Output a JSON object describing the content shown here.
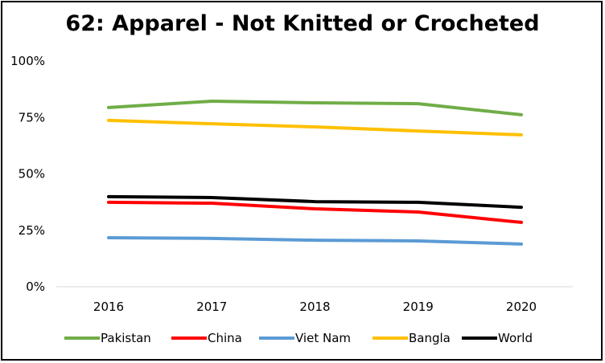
{
  "chart_data": {
    "type": "line",
    "title": "62: Apparel - Not Knitted or Crocheted",
    "xlabel": "",
    "ylabel": "",
    "x": [
      "2016",
      "2017",
      "2018",
      "2019",
      "2020"
    ],
    "ylim": [
      0,
      100
    ],
    "yticks": [
      "0%",
      "25%",
      "50%",
      "75%",
      "100%"
    ],
    "grid": false,
    "legend_position": "bottom",
    "series": [
      {
        "name": "Pakistan",
        "color": "#70AD47",
        "values": [
          79.4,
          82.2,
          81.5,
          81.1,
          76.2
        ]
      },
      {
        "name": "China",
        "color": "#FF0000",
        "values": [
          37.4,
          37.0,
          34.5,
          33.1,
          28.5
        ]
      },
      {
        "name": "Viet Nam",
        "color": "#5B9BD5",
        "values": [
          21.7,
          21.4,
          20.6,
          20.3,
          18.9
        ]
      },
      {
        "name": "Bangla",
        "color": "#FFC000",
        "values": [
          73.7,
          72.2,
          70.8,
          69.0,
          67.3
        ]
      },
      {
        "name": "World",
        "color": "#000000",
        "values": [
          39.9,
          39.5,
          37.7,
          37.4,
          35.2
        ]
      }
    ]
  }
}
